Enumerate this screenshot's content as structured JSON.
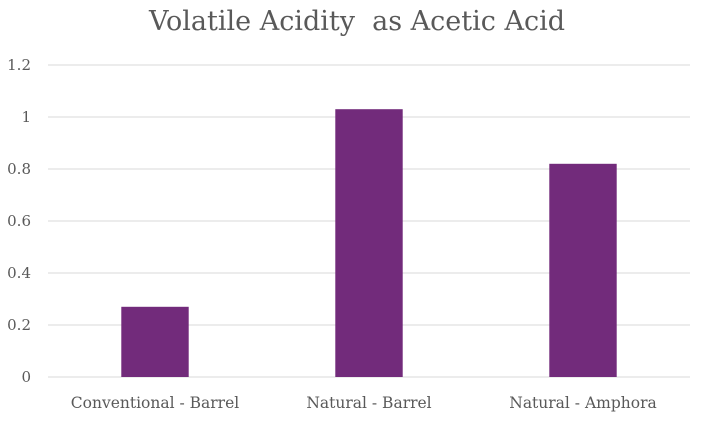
{
  "chart_data": {
    "type": "bar",
    "title": "Volatile Acidity  as Acetic Acid",
    "xlabel": "",
    "ylabel": "",
    "categories": [
      "Conventional - Barrel",
      "Natural - Barrel",
      "Natural - Amphora"
    ],
    "values": [
      0.27,
      1.03,
      0.82
    ],
    "ylim": [
      0,
      1.2
    ],
    "yticks": [
      "0",
      "0.2",
      "0.4",
      "0.6",
      "0.8",
      "1",
      "1.2"
    ],
    "grid": true,
    "legend": "none",
    "bar_color": "#722b7b",
    "grid_color": "#d9d9d9"
  }
}
